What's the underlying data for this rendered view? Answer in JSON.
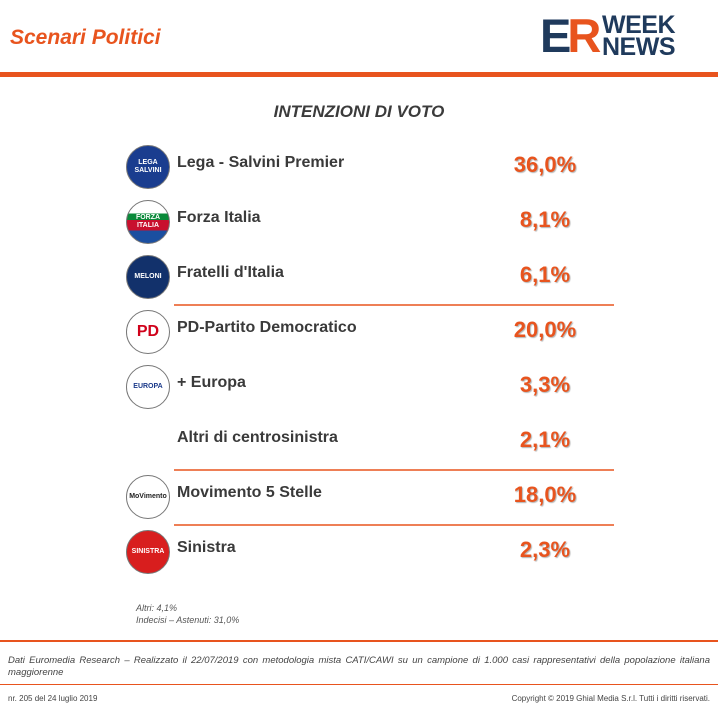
{
  "header": {
    "title": "Scenari Politici",
    "logo_mark_e": "E",
    "logo_mark_r": "R",
    "logo_word1": "WEEK",
    "logo_word2": "NEWS"
  },
  "colors": {
    "accent": "#e8541e",
    "brand_navy": "#1f3a5c"
  },
  "chart_data": {
    "type": "table",
    "title": "INTENZIONI DI VOTO",
    "unit": "%",
    "rows": [
      {
        "party": "Lega - Salvini Premier",
        "value": 36.0,
        "label": "36,0%",
        "logo": "lega-logo",
        "logo_text": "LEGA SALVINI"
      },
      {
        "party": "Forza Italia",
        "value": 8.1,
        "label": "8,1%",
        "logo": "forza-italia-logo",
        "logo_text": "FORZA ITALIA"
      },
      {
        "party": "Fratelli d'Italia",
        "value": 6.1,
        "label": "6,1%",
        "logo": "fratelli-italia-logo",
        "logo_text": "MELONI"
      },
      {
        "party": "PD-Partito Democratico",
        "value": 20.0,
        "label": "20,0%",
        "logo": "pd-logo",
        "logo_text": "PD"
      },
      {
        "party": "+ Europa",
        "value": 3.3,
        "label": "3,3%",
        "logo": "piu-europa-logo",
        "logo_text": "EUROPA"
      },
      {
        "party": "Altri di centrosinistra",
        "value": 2.1,
        "label": "2,1%",
        "logo": "",
        "logo_text": ""
      },
      {
        "party": "Movimento 5 Stelle",
        "value": 18.0,
        "label": "18,0%",
        "logo": "m5s-logo",
        "logo_text": "MoVimento"
      },
      {
        "party": "Sinistra",
        "value": 2.3,
        "label": "2,3%",
        "logo": "sinistra-logo",
        "logo_text": "SINISTRA"
      }
    ],
    "group_separators_after": [
      2,
      5,
      6
    ]
  },
  "notes": {
    "altri": "Altri: 4,1%",
    "indecisi": "Indecisi – Astenuti: 31,0%"
  },
  "source_text": "Dati Euromedia Research – Realizzato il 22/07/2019 con metodologia mista CATI/CAWI su un campione di 1.000 casi rappresentativi della popolazione italiana maggiorenne",
  "footer": {
    "issue": "nr. 205 del 24 luglio 2019",
    "copyright": "Copyright © 2019 Ghial Media S.r.l. Tutti i diritti riservati."
  }
}
